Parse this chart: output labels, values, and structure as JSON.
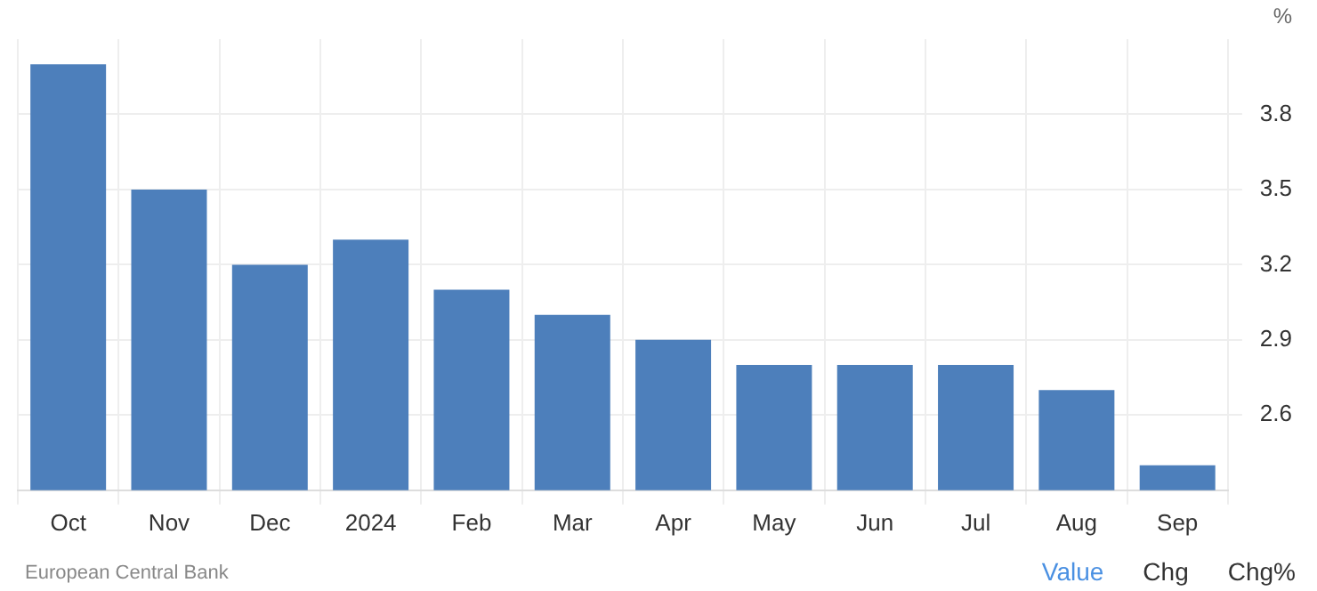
{
  "chart_data": {
    "type": "bar",
    "ylabel": "%",
    "categories": [
      "Oct",
      "Nov",
      "Dec",
      "2024",
      "Feb",
      "Mar",
      "Apr",
      "May",
      "Jun",
      "Jul",
      "Aug",
      "Sep"
    ],
    "values": [
      4.0,
      3.5,
      3.2,
      3.3,
      3.1,
      3.0,
      2.9,
      2.8,
      2.8,
      2.8,
      2.7,
      2.4
    ],
    "color": "#4d7fbb",
    "ylim": [
      2.3,
      4.1
    ],
    "yticks": [
      2.6,
      2.9,
      3.2,
      3.5,
      3.8
    ],
    "grid": true,
    "annotations": [
      "European Central Bank",
      "Value",
      "Chg",
      "Chg%"
    ]
  }
}
